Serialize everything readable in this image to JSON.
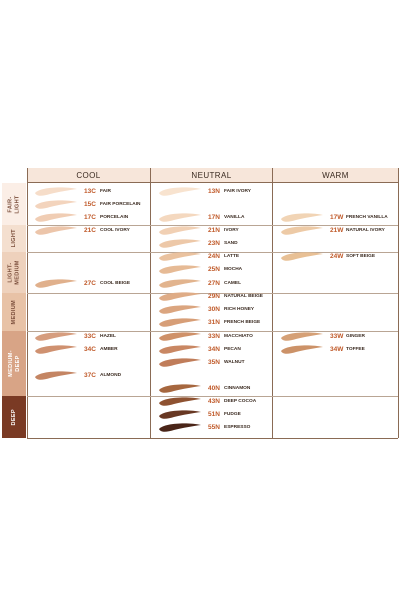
{
  "columns": [
    "COOL",
    "NEUTRAL",
    "WARM"
  ],
  "rows": [
    {
      "label": "FAIR-\nLIGHT",
      "bg": "#fbeee6",
      "fg": "#7a4d3a"
    },
    {
      "label": "LIGHT",
      "bg": "#f4dfcf",
      "fg": "#7a4d3a"
    },
    {
      "label": "LIGHT-\nMEDIUM",
      "bg": "#eed1bc",
      "fg": "#7a4d3a"
    },
    {
      "label": "MEDIUM",
      "bg": "#e8c2a6",
      "fg": "#7a4d3a"
    },
    {
      "label": "MEDIUM-\nDEEP",
      "bg": "#d8a486",
      "fg": "#ffffff"
    },
    {
      "label": "DEEP",
      "bg": "#7a3a24",
      "fg": "#ffffff"
    }
  ],
  "colors": {
    "header_bg": "#f7e6da",
    "header_text": "#3a2a20",
    "code": "#c05a2a",
    "name": "#3a2a20",
    "divider": "#8a6b55"
  },
  "shades": [
    {
      "code": "13C",
      "name": "FAIR",
      "column": "COOL",
      "color": "#f6ddc9"
    },
    {
      "code": "15C",
      "name": "FAIR PORCELAIN",
      "column": "COOL",
      "color": "#f3d4bd"
    },
    {
      "code": "17C",
      "name": "PORCELAIN",
      "column": "COOL",
      "color": "#f0cdb4"
    },
    {
      "code": "21C",
      "name": "COOL IVORY",
      "column": "COOL",
      "color": "#ecc5aa"
    },
    {
      "code": "27C",
      "name": "COOL BEIGE",
      "column": "COOL",
      "color": "#e0b08c"
    },
    {
      "code": "33C",
      "name": "HAZEL",
      "column": "COOL",
      "color": "#d69d7e"
    },
    {
      "code": "34C",
      "name": "AMBER",
      "column": "COOL",
      "color": "#cf9170"
    },
    {
      "code": "37C",
      "name": "ALMOND",
      "column": "COOL",
      "color": "#c48563"
    },
    {
      "code": "13N",
      "name": "FAIR IVORY",
      "column": "NEUTRAL",
      "color": "#f8e3cf"
    },
    {
      "code": "17N",
      "name": "VANILLA",
      "column": "NEUTRAL",
      "color": "#f4d8bf"
    },
    {
      "code": "21N",
      "name": "IVORY",
      "column": "NEUTRAL",
      "color": "#f1d0b4"
    },
    {
      "code": "23N",
      "name": "SAND",
      "column": "NEUTRAL",
      "color": "#edc8a8"
    },
    {
      "code": "24N",
      "name": "LATTE",
      "column": "NEUTRAL",
      "color": "#eac29f"
    },
    {
      "code": "25N",
      "name": "MOCHA",
      "column": "NEUTRAL",
      "color": "#e6ba95"
    },
    {
      "code": "27N",
      "name": "CAMEL",
      "column": "NEUTRAL",
      "color": "#e2b48e"
    },
    {
      "code": "29N",
      "name": "NATURAL BEIGE",
      "column": "NEUTRAL",
      "color": "#dfac86"
    },
    {
      "code": "30N",
      "name": "RICH HONEY",
      "column": "NEUTRAL",
      "color": "#dba57f"
    },
    {
      "code": "31N",
      "name": "FRENCH BEIGE",
      "column": "NEUTRAL",
      "color": "#d79e77"
    },
    {
      "code": "33N",
      "name": "MACCHIATO",
      "column": "NEUTRAL",
      "color": "#cf9169"
    },
    {
      "code": "34N",
      "name": "PECAN",
      "column": "NEUTRAL",
      "color": "#c98763"
    },
    {
      "code": "35N",
      "name": "WALNUT",
      "column": "NEUTRAL",
      "color": "#c07d5a"
    },
    {
      "code": "40N",
      "name": "CINNAMON",
      "column": "NEUTRAL",
      "color": "#a6673f"
    },
    {
      "code": "43N",
      "name": "DEEP COCOA",
      "column": "NEUTRAL",
      "color": "#8e5231"
    },
    {
      "code": "51N",
      "name": "FUDGE",
      "column": "NEUTRAL",
      "color": "#683823"
    },
    {
      "code": "55N",
      "name": "ESPRESSO",
      "column": "NEUTRAL",
      "color": "#4a2518"
    },
    {
      "code": "17W",
      "name": "FRENCH VANILLA",
      "column": "WARM",
      "color": "#f1d4b5"
    },
    {
      "code": "21W",
      "name": "NATURAL IVORY",
      "column": "WARM",
      "color": "#edcaa6"
    },
    {
      "code": "24W",
      "name": "SOFT BEIGE",
      "column": "WARM",
      "color": "#e8c095"
    },
    {
      "code": "33W",
      "name": "GINGER",
      "column": "WARM",
      "color": "#d5a076"
    },
    {
      "code": "34W",
      "name": "TOFFEE",
      "column": "WARM",
      "color": "#cc9268"
    }
  ]
}
